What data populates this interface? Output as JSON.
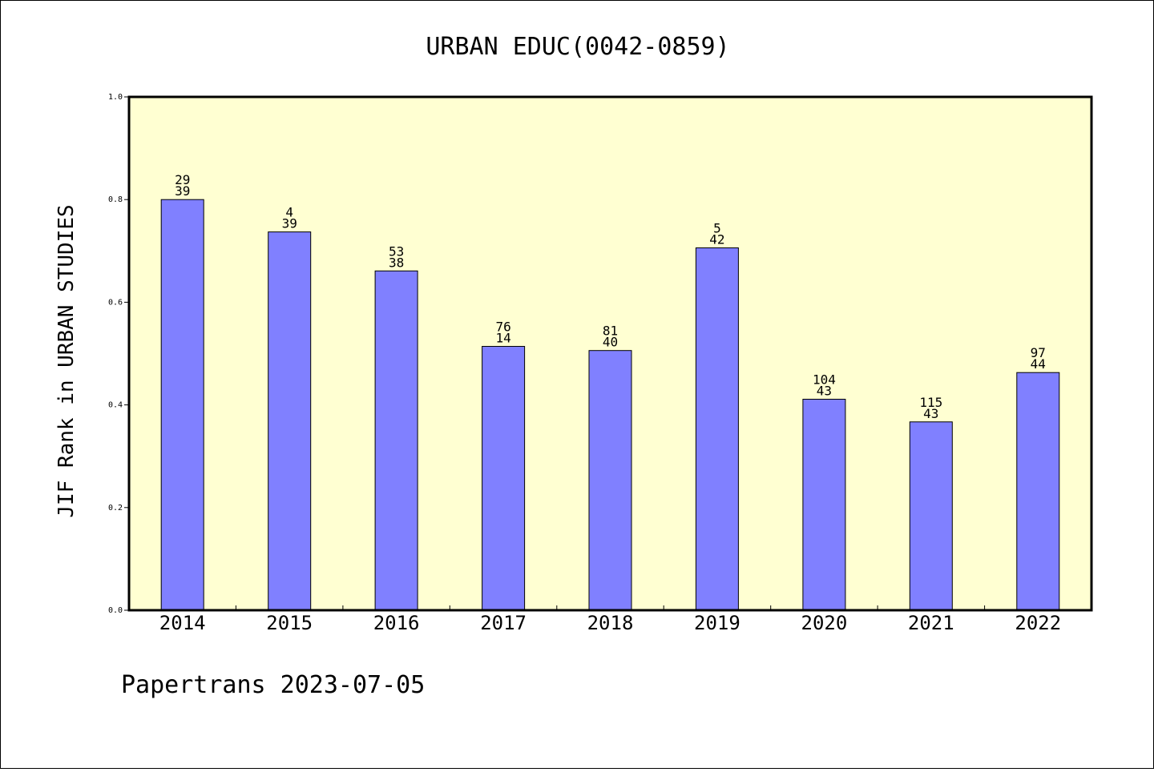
{
  "chart_data": {
    "type": "bar",
    "title": "URBAN EDUC(0042-0859)",
    "xlabel": "",
    "ylabel": "JIF Rank in URBAN STUDIES",
    "ylim": [
      0.0,
      1.0
    ],
    "yticks": [
      "0.0",
      "0.2",
      "0.4",
      "0.6",
      "0.8",
      "1.0"
    ],
    "categories": [
      "2014",
      "2015",
      "2016",
      "2017",
      "2018",
      "2019",
      "2020",
      "2021",
      "2022"
    ],
    "values": [
      0.8,
      0.737,
      0.661,
      0.514,
      0.506,
      0.706,
      0.411,
      0.367,
      0.463
    ],
    "labels_top": [
      "29",
      "4",
      "53",
      "76",
      "81",
      "5",
      "104",
      "115",
      "97"
    ],
    "labels_bottom": [
      "39",
      "39",
      "38",
      "14",
      "40",
      "42",
      "43",
      "43",
      "44"
    ],
    "colors": {
      "plot_bg": "#ffffd2",
      "bar": "#8080ff"
    },
    "grid": false,
    "legend": "none"
  },
  "footer": "Papertrans 2023-07-05"
}
